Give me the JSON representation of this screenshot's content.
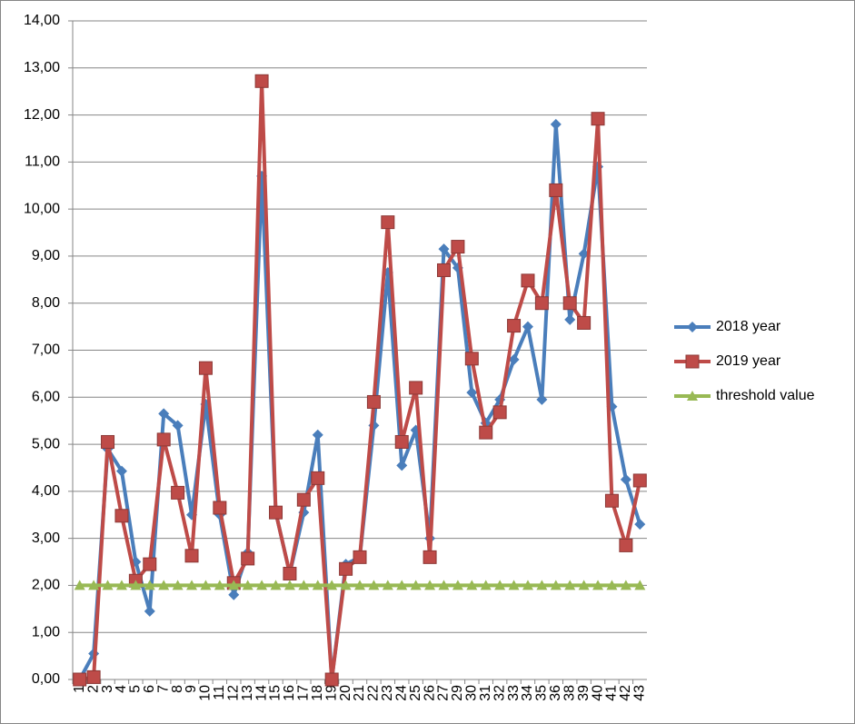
{
  "chart_data": {
    "type": "line",
    "categories": [
      "1",
      "2",
      "3",
      "4",
      "5",
      "6",
      "7",
      "8",
      "9",
      "10",
      "11",
      "12",
      "13",
      "14",
      "15",
      "16",
      "17",
      "18",
      "19",
      "20",
      "21",
      "22",
      "23",
      "24",
      "25",
      "26",
      "27",
      "29",
      "30",
      "31",
      "32",
      "33",
      "34",
      "35",
      "36",
      "38",
      "39",
      "40",
      "41",
      "42",
      "43"
    ],
    "series": [
      {
        "name": "2018 year",
        "color": "#4a7ebb",
        "marker": "diamond",
        "values": [
          0.0,
          0.55,
          4.9,
          4.43,
          2.5,
          1.45,
          5.65,
          5.4,
          3.5,
          5.85,
          3.5,
          1.8,
          2.7,
          10.7,
          3.55,
          2.25,
          3.55,
          5.2,
          0.0,
          2.45,
          2.6,
          5.4,
          8.65,
          4.55,
          5.3,
          3.0,
          9.15,
          8.75,
          6.1,
          5.45,
          5.95,
          6.8,
          7.5,
          5.95,
          11.8,
          7.65,
          9.05,
          10.9,
          5.8,
          4.25,
          3.3
        ]
      },
      {
        "name": "2019 year",
        "color": "#be4b48",
        "marker": "square",
        "values": [
          0.0,
          0.05,
          5.05,
          3.48,
          2.1,
          2.45,
          5.1,
          3.97,
          2.63,
          6.62,
          3.65,
          2.05,
          2.57,
          12.72,
          3.55,
          2.25,
          3.82,
          4.28,
          0.0,
          2.35,
          2.6,
          5.9,
          9.72,
          5.05,
          6.2,
          2.6,
          8.7,
          9.2,
          6.82,
          5.25,
          5.68,
          7.52,
          8.48,
          8.0,
          10.4,
          8.0,
          7.58,
          11.92,
          3.8,
          2.85,
          4.23
        ]
      },
      {
        "name": "threshold value",
        "color": "#98b954",
        "marker": "triangle",
        "values": [
          2,
          2,
          2,
          2,
          2,
          2,
          2,
          2,
          2,
          2,
          2,
          2,
          2,
          2,
          2,
          2,
          2,
          2,
          2,
          2,
          2,
          2,
          2,
          2,
          2,
          2,
          2,
          2,
          2,
          2,
          2,
          2,
          2,
          2,
          2,
          2,
          2,
          2,
          2,
          2,
          2
        ]
      }
    ],
    "ylim": [
      0,
      14
    ],
    "yticks": [
      {
        "value": 0,
        "label": "0,00"
      },
      {
        "value": 1,
        "label": "1,00"
      },
      {
        "value": 2,
        "label": "2,00"
      },
      {
        "value": 3,
        "label": "3,00"
      },
      {
        "value": 4,
        "label": "4,00"
      },
      {
        "value": 5,
        "label": "5,00"
      },
      {
        "value": 6,
        "label": "6,00"
      },
      {
        "value": 7,
        "label": "7,00"
      },
      {
        "value": 8,
        "label": "8,00"
      },
      {
        "value": 9,
        "label": "9,00"
      },
      {
        "value": 10,
        "label": "10,00"
      },
      {
        "value": 11,
        "label": "11,00"
      },
      {
        "value": 12,
        "label": "12,00"
      },
      {
        "value": 13,
        "label": "13,00"
      },
      {
        "value": 14,
        "label": "14,00"
      }
    ],
    "grid": true,
    "legend": "right"
  }
}
